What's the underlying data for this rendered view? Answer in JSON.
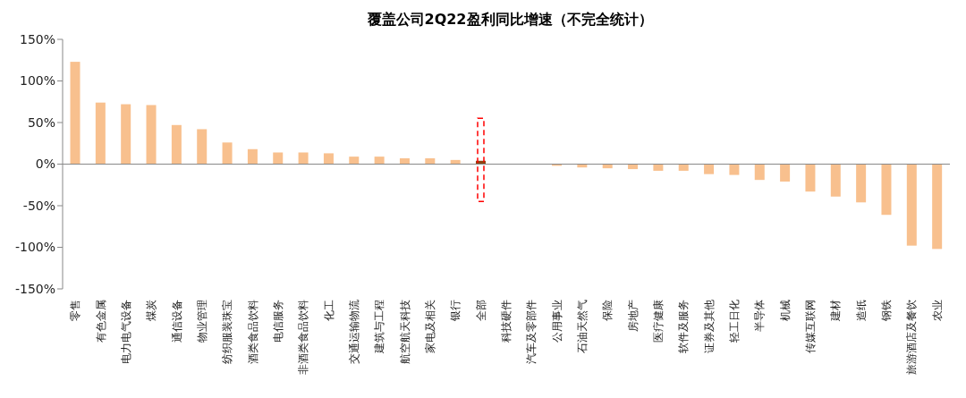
{
  "chart_data": {
    "type": "bar",
    "title": "覆盖公司2Q22盈利同比增速（不完全统计）",
    "categories": [
      "零售",
      "有色金属",
      "电力电气设备",
      "煤炭",
      "通信设备",
      "物业管理",
      "纺织服装珠宝",
      "酒类食品饮料",
      "电信服务",
      "非酒类食品饮料",
      "化工",
      "交通运输物流",
      "建筑与工程",
      "航空航天科技",
      "家电及相关",
      "银行",
      "全部",
      "科技硬件",
      "汽车及零部件",
      "公用事业",
      "石油天然气",
      "保险",
      "房地产",
      "医疗健康",
      "软件及服务",
      "证券及其他",
      "轻工日化",
      "半导体",
      "机械",
      "传媒互联网",
      "建材",
      "造纸",
      "钢铁",
      "旅游酒店及餐饮",
      "农业"
    ],
    "values": [
      123,
      74,
      72,
      71,
      47,
      42,
      26,
      18,
      14,
      14,
      13,
      9,
      9,
      7,
      7,
      5,
      4,
      0,
      0,
      -2,
      -4,
      -5,
      -6,
      -8,
      -8,
      -12,
      -13,
      -19,
      -21,
      -33,
      -39,
      -46,
      -61,
      -98,
      -102
    ],
    "colors": [
      "#f8c08e",
      "#f8c08e",
      "#f8c08e",
      "#f8c08e",
      "#f8c08e",
      "#f8c08e",
      "#f8c08e",
      "#f8c08e",
      "#f8c08e",
      "#f8c08e",
      "#f8c08e",
      "#f8c08e",
      "#f8c08e",
      "#f8c08e",
      "#f8c08e",
      "#f8c08e",
      "#8b4513",
      "#f8c08e",
      "#f8c08e",
      "#f8c08e",
      "#f8c08e",
      "#f8c08e",
      "#f8c08e",
      "#f8c08e",
      "#f8c08e",
      "#f8c08e",
      "#f8c08e",
      "#f8c08e",
      "#f8c08e",
      "#f8c08e",
      "#f8c08e",
      "#f8c08e",
      "#f8c08e",
      "#f8c08e",
      "#f8c08e"
    ],
    "ylim": [
      -150,
      150
    ],
    "yticks": [
      {
        "value": -150,
        "label": "-150%"
      },
      {
        "value": -100,
        "label": "-100%"
      },
      {
        "value": -50,
        "label": "-50%"
      },
      {
        "value": 0,
        "label": "0%"
      },
      {
        "value": 50,
        "label": "50%"
      },
      {
        "value": 100,
        "label": "100%"
      },
      {
        "value": 150,
        "label": "150%"
      }
    ],
    "legend": false
  }
}
